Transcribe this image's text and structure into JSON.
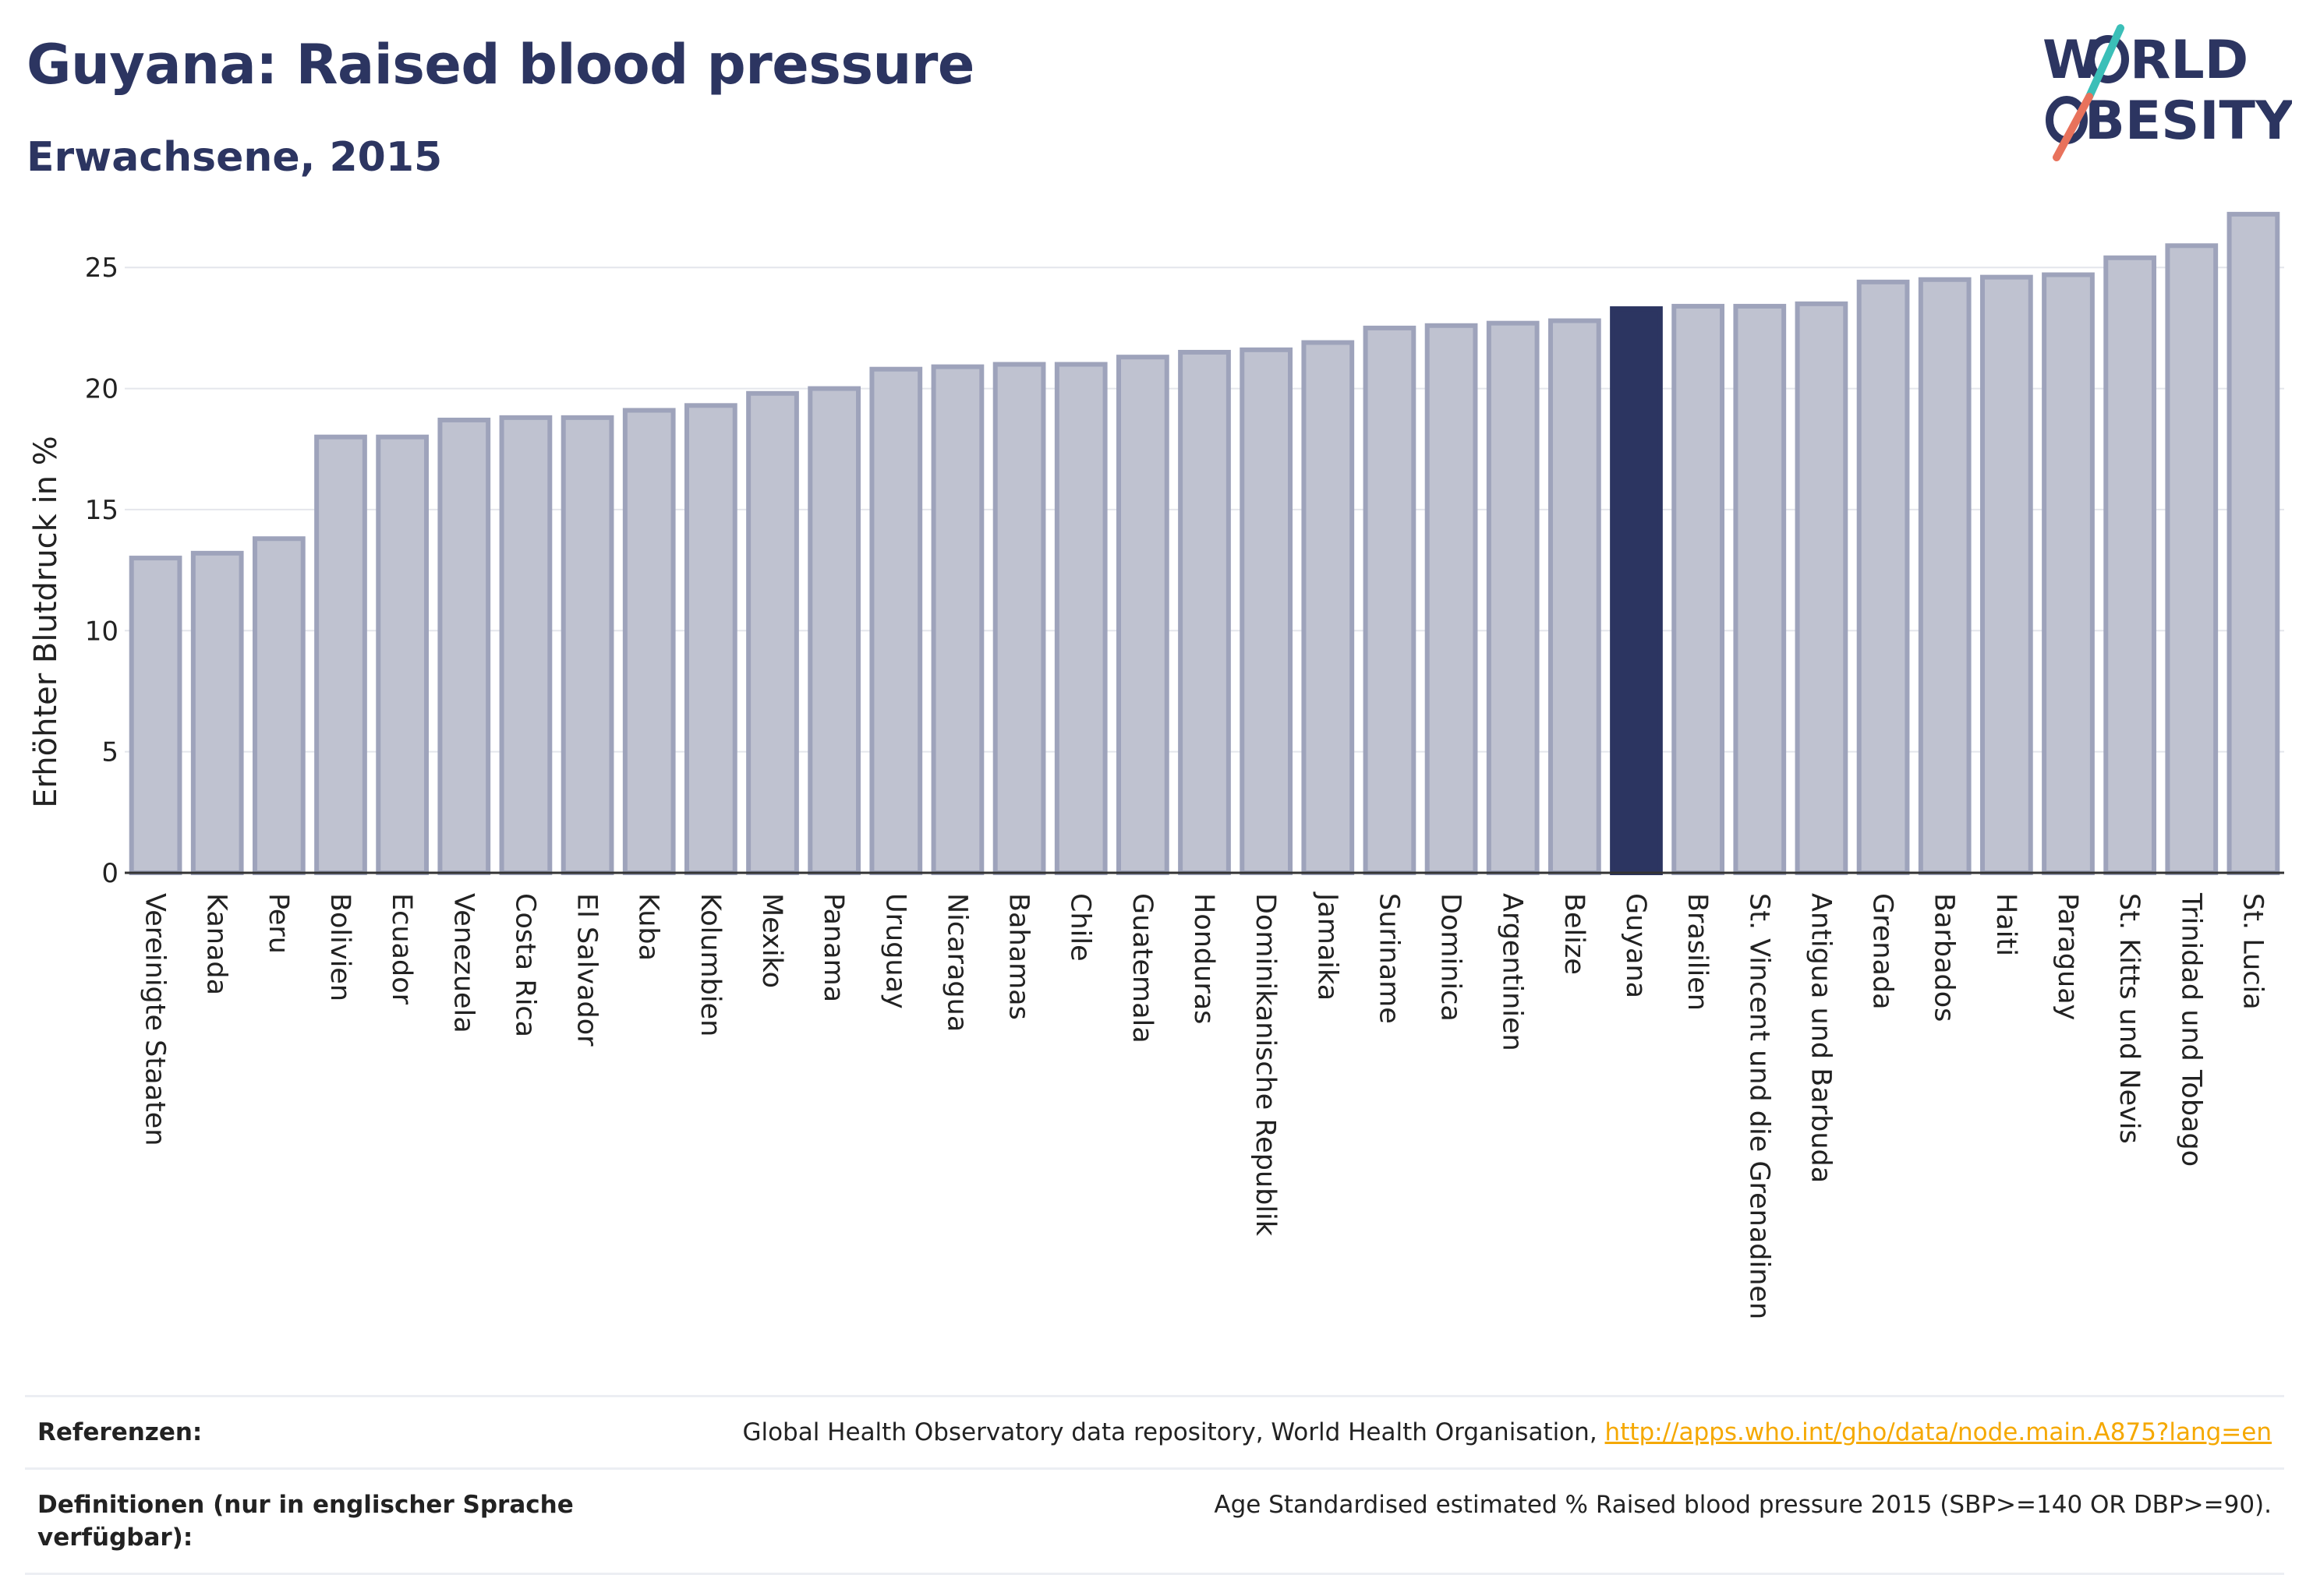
{
  "header": {
    "title": "Guyana: Raised blood pressure",
    "subtitle": "Erwachsene, 2015"
  },
  "logo": {
    "line1": "W",
    "line1b": "RLD",
    "line2": "BESITY"
  },
  "colors": {
    "highlight": "#2c3561",
    "bar_fill": "#bfc2d0",
    "bar_stroke": "#9ea3bb",
    "link": "#f5a800"
  },
  "chart_data": {
    "type": "bar",
    "ylabel": "Erhöhter Blutdruck in %",
    "ylim": [
      0,
      28
    ],
    "yticks": [
      0,
      5,
      10,
      15,
      20,
      25
    ],
    "grid": true,
    "highlight": "Guyana",
    "categories": [
      "Vereinigte Staaten",
      "Kanada",
      "Peru",
      "Bolivien",
      "Ecuador",
      "Venezuela",
      "Costa Rica",
      "El Salvador",
      "Kuba",
      "Kolumbien",
      "Mexiko",
      "Panama",
      "Uruguay",
      "Nicaragua",
      "Bahamas",
      "Chile",
      "Guatemala",
      "Honduras",
      "Dominikanische Republik",
      "Jamaika",
      "Suriname",
      "Dominica",
      "Argentinien",
      "Belize",
      "Guyana",
      "Brasilien",
      "St. Vincent und die Grenadinen",
      "Antigua und Barbuda",
      "Grenada",
      "Barbados",
      "Haiti",
      "Paraguay",
      "St. Kitts und Nevis",
      "Trinidad und Tobago",
      "St. Lucia"
    ],
    "values": [
      13.0,
      13.2,
      13.8,
      18.0,
      18.0,
      18.7,
      18.8,
      18.8,
      19.1,
      19.3,
      19.8,
      20.0,
      20.8,
      20.9,
      21.0,
      21.0,
      21.3,
      21.5,
      21.6,
      21.9,
      22.5,
      22.6,
      22.7,
      22.8,
      23.3,
      23.4,
      23.4,
      23.5,
      24.4,
      24.5,
      24.6,
      24.7,
      25.4,
      25.9,
      27.2
    ]
  },
  "footer": {
    "references_label": "Referenzen:",
    "references_text": "Global Health Observatory data repository, World Health Organisation, ",
    "references_link": "http://apps.who.int/gho/data/node.main.A875?lang=en",
    "definitions_label": "Definitionen (nur in englischer Sprache verfügbar):",
    "definitions_text": "Age Standardised estimated % Raised blood pressure 2015 (SBP>=140 OR DBP>=90)."
  }
}
